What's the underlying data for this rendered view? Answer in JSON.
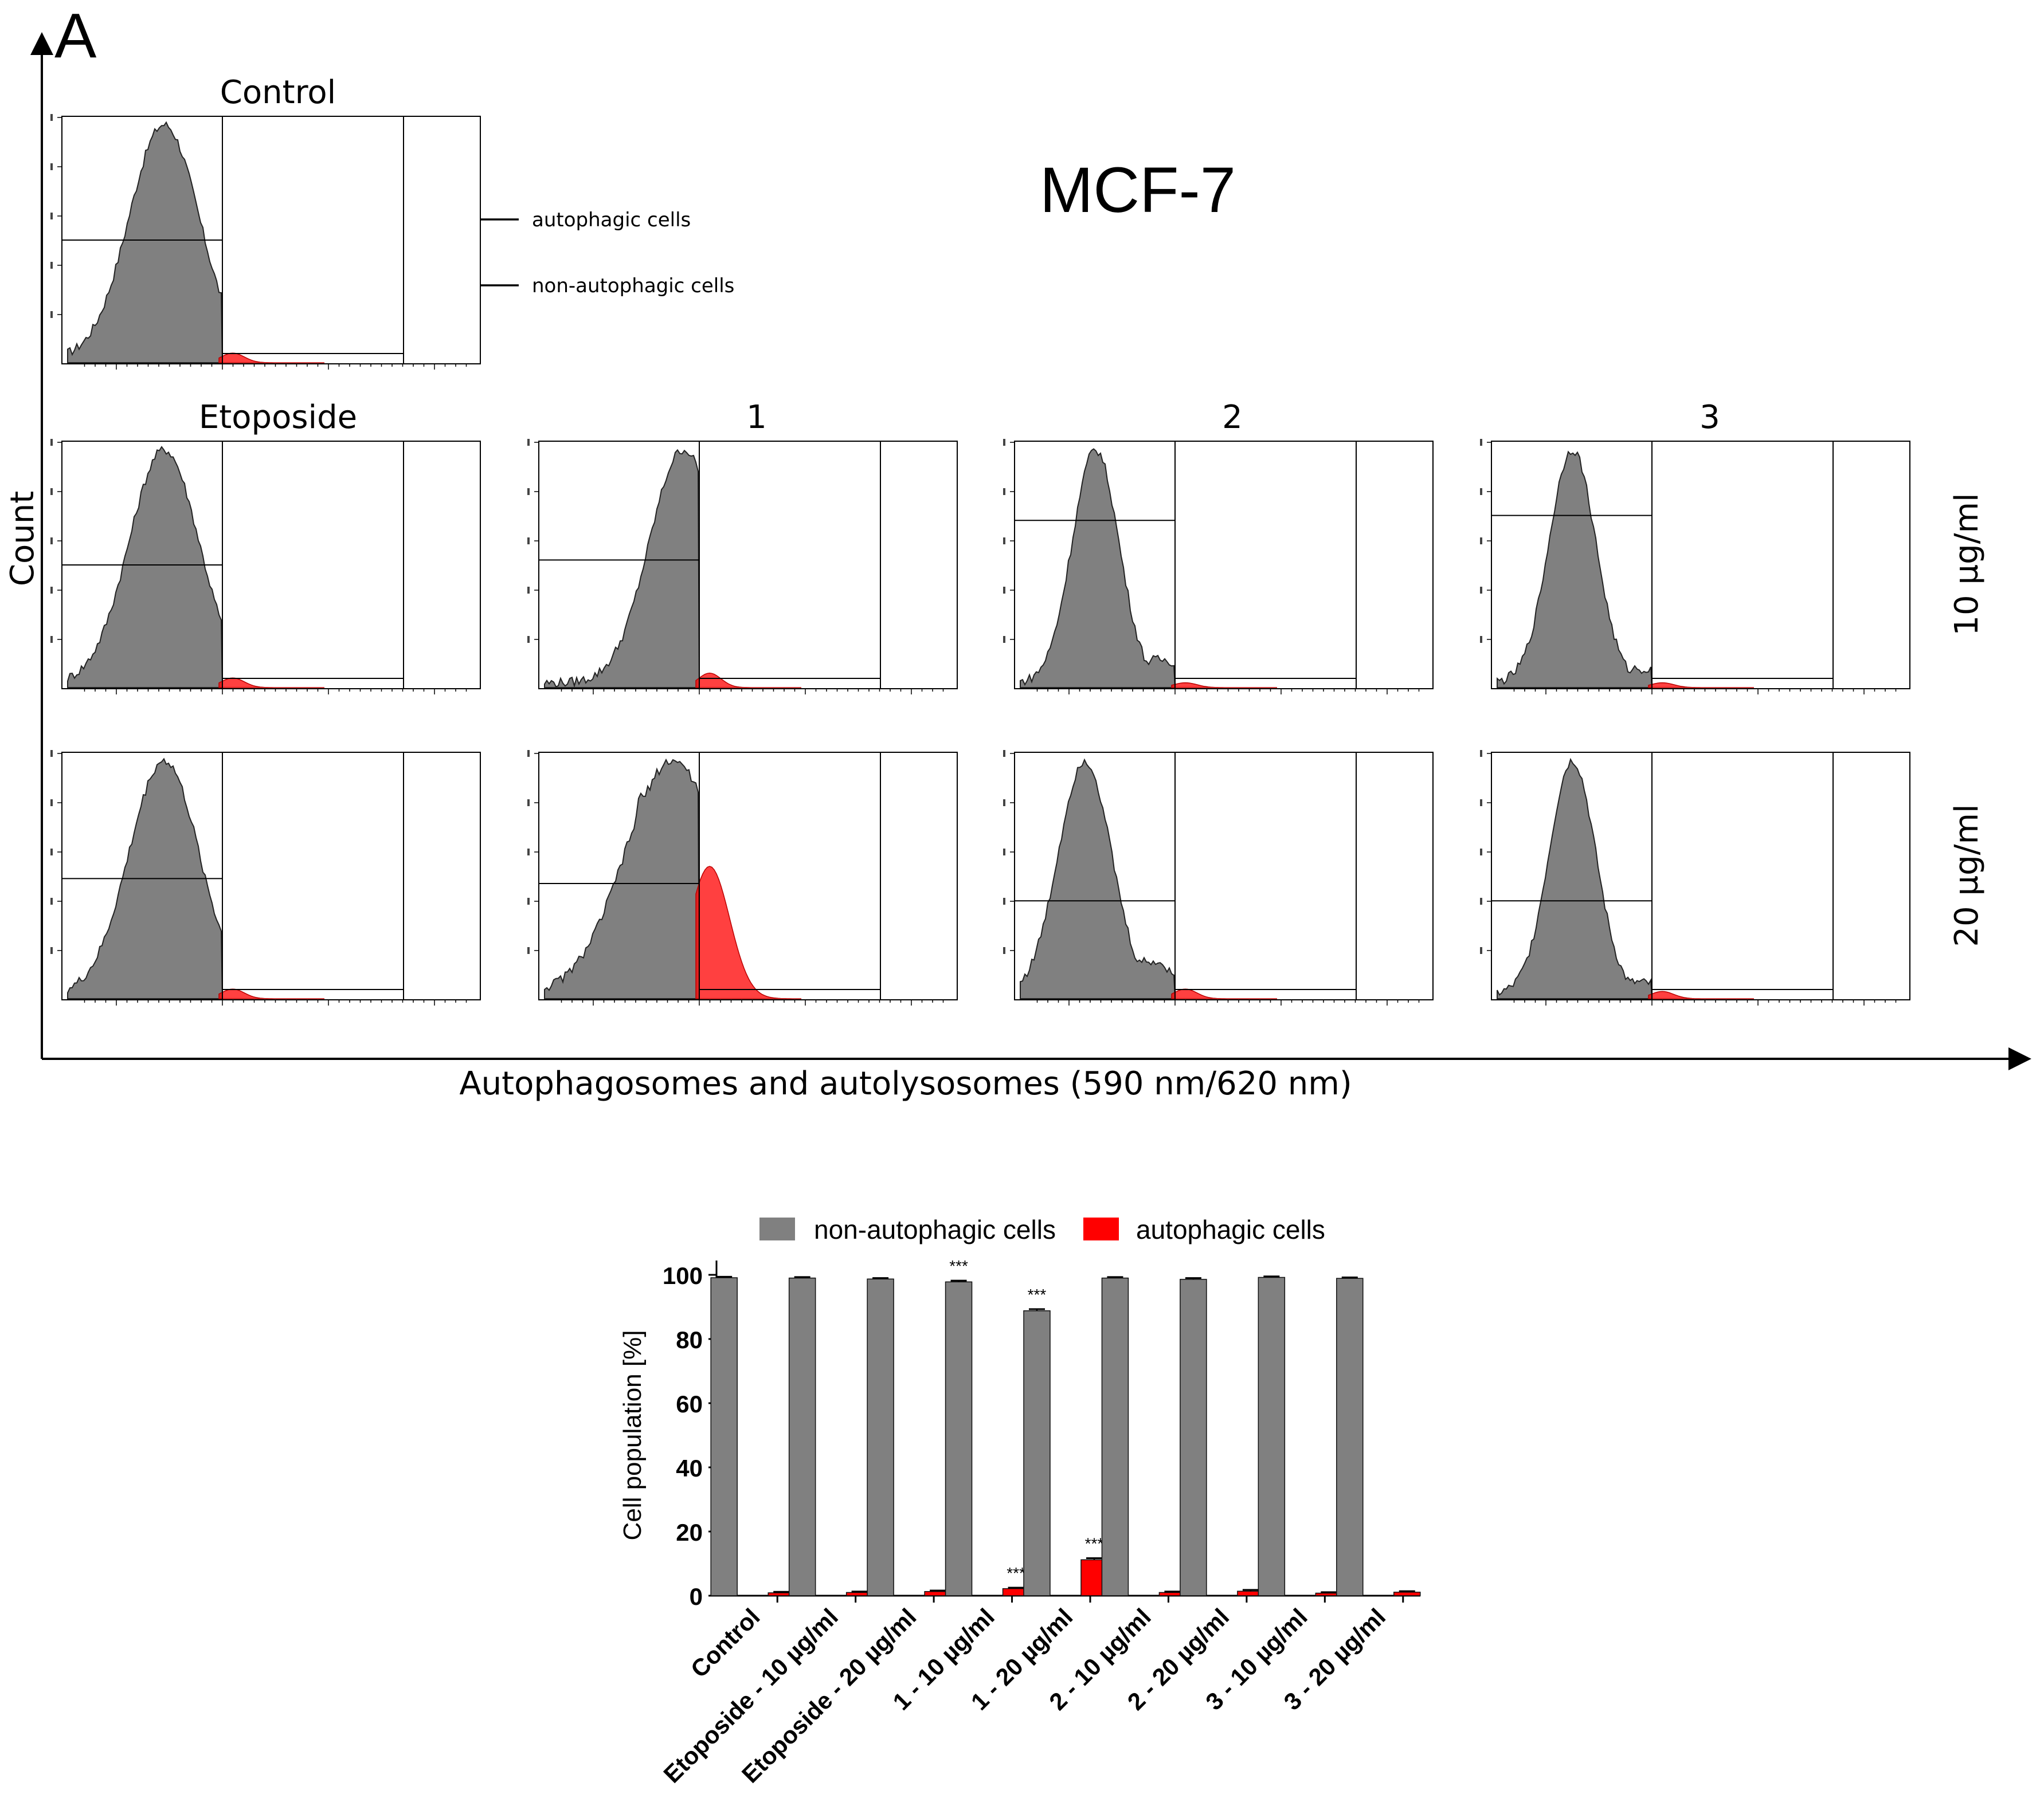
{
  "panel_label": "A",
  "cell_line": "MCF-7",
  "axes": {
    "count_label": "Count",
    "x_label": "Autophagosomes and autolysosomes (590 nm/620 nm)"
  },
  "annotations": {
    "autophagic": "autophagic cells",
    "non_autophagic": "non-autophagic cells"
  },
  "column_titles": [
    "Etoposide",
    "1",
    "2",
    "3"
  ],
  "control_title": "Control",
  "row_labels": [
    "10 µg/ml",
    "20 µg/ml"
  ],
  "colors": {
    "non_autophagic": "#808080",
    "autophagic": "#ff0000"
  },
  "histograms": [
    {
      "name": "Control",
      "peak_decade": 2.45,
      "width": 0.33,
      "red_peak": 0.04,
      "gate_level": 0.5,
      "tail": 0.0
    },
    {
      "name": "Etoposide - 10 µg/ml",
      "peak_decade": 2.45,
      "width": 0.33,
      "red_peak": 0.04,
      "gate_level": 0.5,
      "tail": 0.0
    },
    {
      "name": "1 - 10 µg/ml",
      "peak_decade": 2.85,
      "width": 0.32,
      "red_peak": 0.06,
      "gate_level": 0.52,
      "tail": 0.0
    },
    {
      "name": "2 - 10 µg/ml",
      "peak_decade": 2.25,
      "width": 0.22,
      "red_peak": 0.02,
      "gate_level": 0.68,
      "tail": 0.1
    },
    {
      "name": "3 - 10 µg/ml",
      "peak_decade": 2.25,
      "width": 0.22,
      "red_peak": 0.02,
      "gate_level": 0.7,
      "tail": 0.06
    },
    {
      "name": "Etoposide - 20 µg/ml",
      "peak_decade": 2.45,
      "width": 0.33,
      "red_peak": 0.04,
      "gate_level": 0.49,
      "tail": 0.0
    },
    {
      "name": "1 - 20 µg/ml",
      "peak_decade": 2.75,
      "width": 0.45,
      "red_peak": 0.55,
      "gate_level": 0.47,
      "tail": 0.0
    },
    {
      "name": "2 - 20 µg/ml",
      "peak_decade": 2.15,
      "width": 0.25,
      "red_peak": 0.04,
      "gate_level": 0.4,
      "tail": 0.14
    },
    {
      "name": "3 - 20 µg/ml",
      "peak_decade": 2.25,
      "width": 0.22,
      "red_peak": 0.03,
      "gate_level": 0.4,
      "tail": 0.05
    }
  ],
  "chart_data": {
    "type": "bar",
    "categories": [
      "Control",
      "Etoposide - 10 µg/ml",
      "Etoposide - 20 µg/ml",
      "1 - 10 µg/ml",
      "1 - 20 µg/ml",
      "2 - 10 µg/ml",
      "2 - 20 µg/ml",
      "3 - 10 µg/ml",
      "3 - 20 µg/ml"
    ],
    "series": [
      {
        "name": "non-autophagic cells",
        "values": [
          99.1,
          99.0,
          98.7,
          97.8,
          88.8,
          99.0,
          98.6,
          99.2,
          98.9
        ],
        "errors": [
          0.3,
          0.3,
          0.3,
          0.4,
          0.5,
          0.3,
          0.4,
          0.3,
          0.3
        ],
        "sig": [
          "",
          "",
          "",
          "***",
          "***",
          "",
          "",
          "",
          ""
        ]
      },
      {
        "name": "autophagic cells",
        "values": [
          0.9,
          1.0,
          1.3,
          2.2,
          11.2,
          1.0,
          1.4,
          0.8,
          1.1
        ],
        "errors": [
          0.3,
          0.3,
          0.3,
          0.3,
          0.5,
          0.3,
          0.4,
          0.3,
          0.3
        ],
        "sig": [
          "",
          "",
          "",
          "***",
          "***",
          "",
          "",
          "",
          ""
        ]
      }
    ],
    "ylabel": "Cell population [%]",
    "ylim": [
      0,
      100
    ],
    "yticks": [
      0,
      20,
      40,
      60,
      80,
      100
    ],
    "legend_position": "top"
  }
}
